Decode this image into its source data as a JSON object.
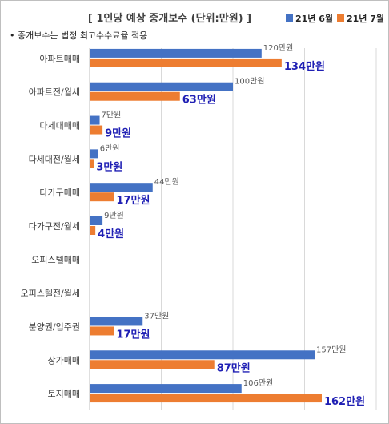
{
  "chart_data": {
    "type": "bar",
    "orientation": "horizontal",
    "title": "[ 1인당 예상 중개보수 (단위:만원) ]",
    "note": "• 중개보수는 법정 최고수수료율 적용",
    "unit_suffix": "만원",
    "categories": [
      "아파트매매",
      "아파트전/월세",
      "다세대매매",
      "다세대전/월세",
      "다가구매매",
      "다가구전/월세",
      "오피스텔매매",
      "오피스텔전/월세",
      "분양권/입주권",
      "상가매매",
      "토지매매"
    ],
    "series": [
      {
        "name": "21년 6월",
        "color": "#4472C4",
        "values": [
          120,
          100,
          7,
          6,
          44,
          9,
          null,
          null,
          37,
          157,
          106
        ]
      },
      {
        "name": "21년 7월",
        "color": "#ED7D31",
        "values": [
          134,
          63,
          9,
          3,
          17,
          4,
          null,
          null,
          17,
          87,
          162
        ]
      }
    ],
    "xlim": [
      0,
      200
    ],
    "grid": true,
    "legend_position": "top-right",
    "label_colors": {
      "june": "#595959",
      "july": "#1F1FB4"
    }
  }
}
